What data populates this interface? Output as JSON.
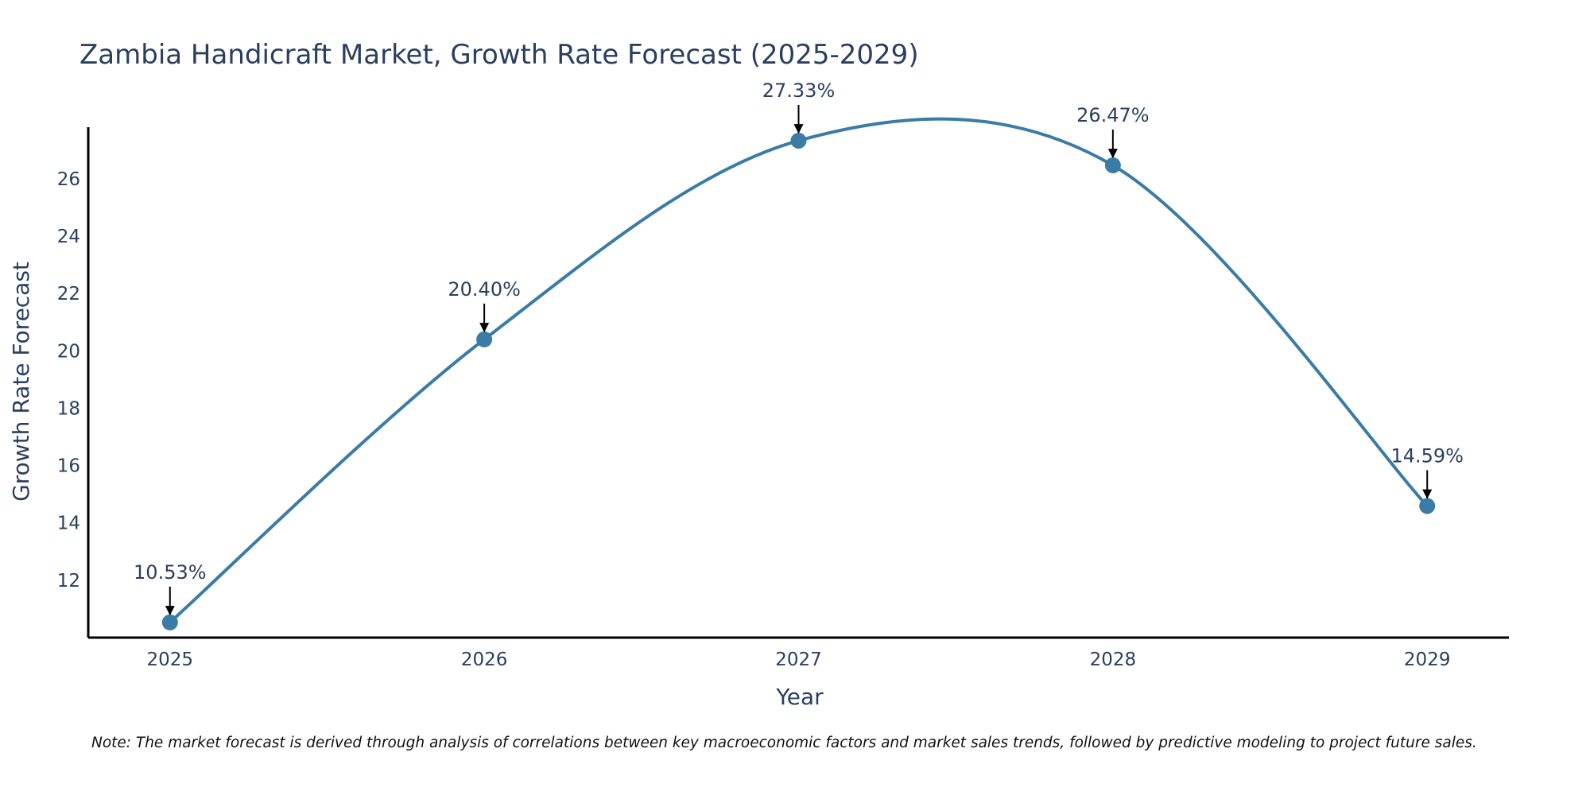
{
  "chart_data": {
    "type": "line",
    "title": "Zambia Handicraft Market, Growth Rate Forecast (2025-2029)",
    "xlabel": "Year",
    "ylabel": "Growth Rate Forecast",
    "categories": [
      "2025",
      "2026",
      "2027",
      "2028",
      "2029"
    ],
    "x": [
      2025,
      2026,
      2027,
      2028,
      2029
    ],
    "series": [
      {
        "name": "Growth Rate Forecast",
        "values": [
          10.53,
          20.4,
          27.33,
          26.47,
          14.59
        ],
        "labels": [
          "10.53%",
          "20.40%",
          "27.33%",
          "26.47%",
          "14.59%"
        ],
        "color": "#3a7ca5"
      }
    ],
    "xlim": [
      2024.74,
      2029.26
    ],
    "ylim": [
      10.0,
      27.8
    ],
    "yticks": [
      12,
      14,
      16,
      18,
      20,
      22,
      24,
      26
    ],
    "ytick_labels": [
      "12",
      "14",
      "16",
      "18",
      "20",
      "22",
      "24",
      "26"
    ],
    "grid": false,
    "legend": "none",
    "line_shape": "spline",
    "note": "Note: The market forecast is derived through analysis of correlations between key macroeconomic factors and market sales trends, followed by predictive modeling to project future sales."
  }
}
